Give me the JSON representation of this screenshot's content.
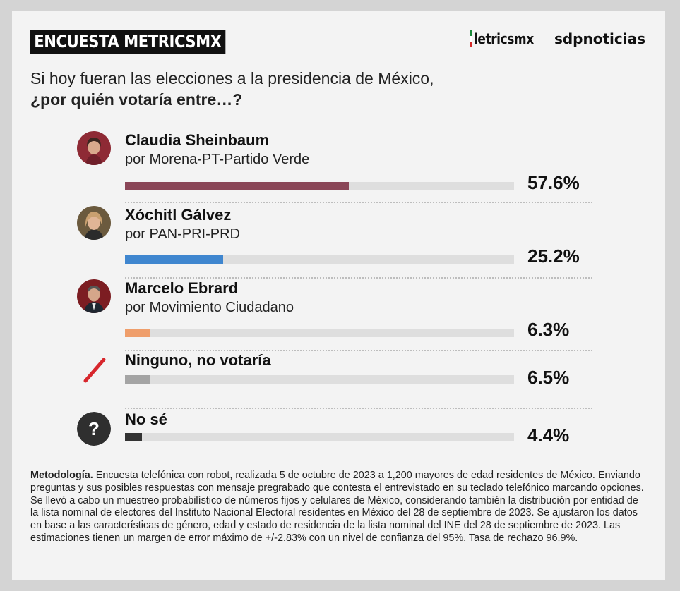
{
  "header": {
    "badge": "ENCUESTA METRICSMX",
    "brand_metrics": "letricsmx",
    "brand_sdp": "sdpnoticias"
  },
  "question": {
    "line1": "Si hoy fueran las elecciones a la presidencia de México,",
    "line2": "¿por quién votaría entre…?"
  },
  "chart_data": {
    "type": "bar",
    "orientation": "horizontal",
    "categories": [
      "Claudia Sheinbaum",
      "Xóchitl Gálvez",
      "Marcelo Ebrard",
      "Ninguno, no votaría",
      "No sé"
    ],
    "subtitles": [
      "por Morena-PT-Partido Verde",
      "por PAN-PRI-PRD",
      "por Movimiento Ciudadano",
      "",
      ""
    ],
    "values": [
      57.6,
      25.2,
      6.3,
      6.5,
      4.4
    ],
    "labels": [
      "57.6%",
      "25.2%",
      "6.3%",
      "6.5%",
      "4.4%"
    ],
    "colors": [
      "#8a4657",
      "#3f86cf",
      "#ef9e6b",
      "#a4a4a4",
      "#333333"
    ],
    "icons": [
      "avatar-sheinbaum",
      "avatar-galvez",
      "avatar-ebrard",
      "slash-icon",
      "question-icon"
    ],
    "xlim": [
      0,
      100
    ]
  },
  "methodology": {
    "label": "Metodología.",
    "text": " Encuesta telefónica con robot, realizada 5 de octubre de 2023 a 1,200 mayores de edad residentes de México. Enviando preguntas y sus posibles respuestas con mensaje pregrabado que contesta el entrevistado en su teclado telefónico marcando opciones. Se llevó a cabo un muestreo probabilístico de números fijos y celulares de México, considerando también la distribución por entidad de la lista nominal de electores del Instituto Nacional Electoral residentes en México del 28 de septiembre de 2023. Se ajustaron los datos en base a las características de género, edad y estado de residencia de la lista nominal del INE del 28 de septiembre de 2023. Las estimaciones tienen un margen de error máximo de +/-2.83% con un nivel de confianza del 95%. Tasa de rechazo 96.9%."
  }
}
